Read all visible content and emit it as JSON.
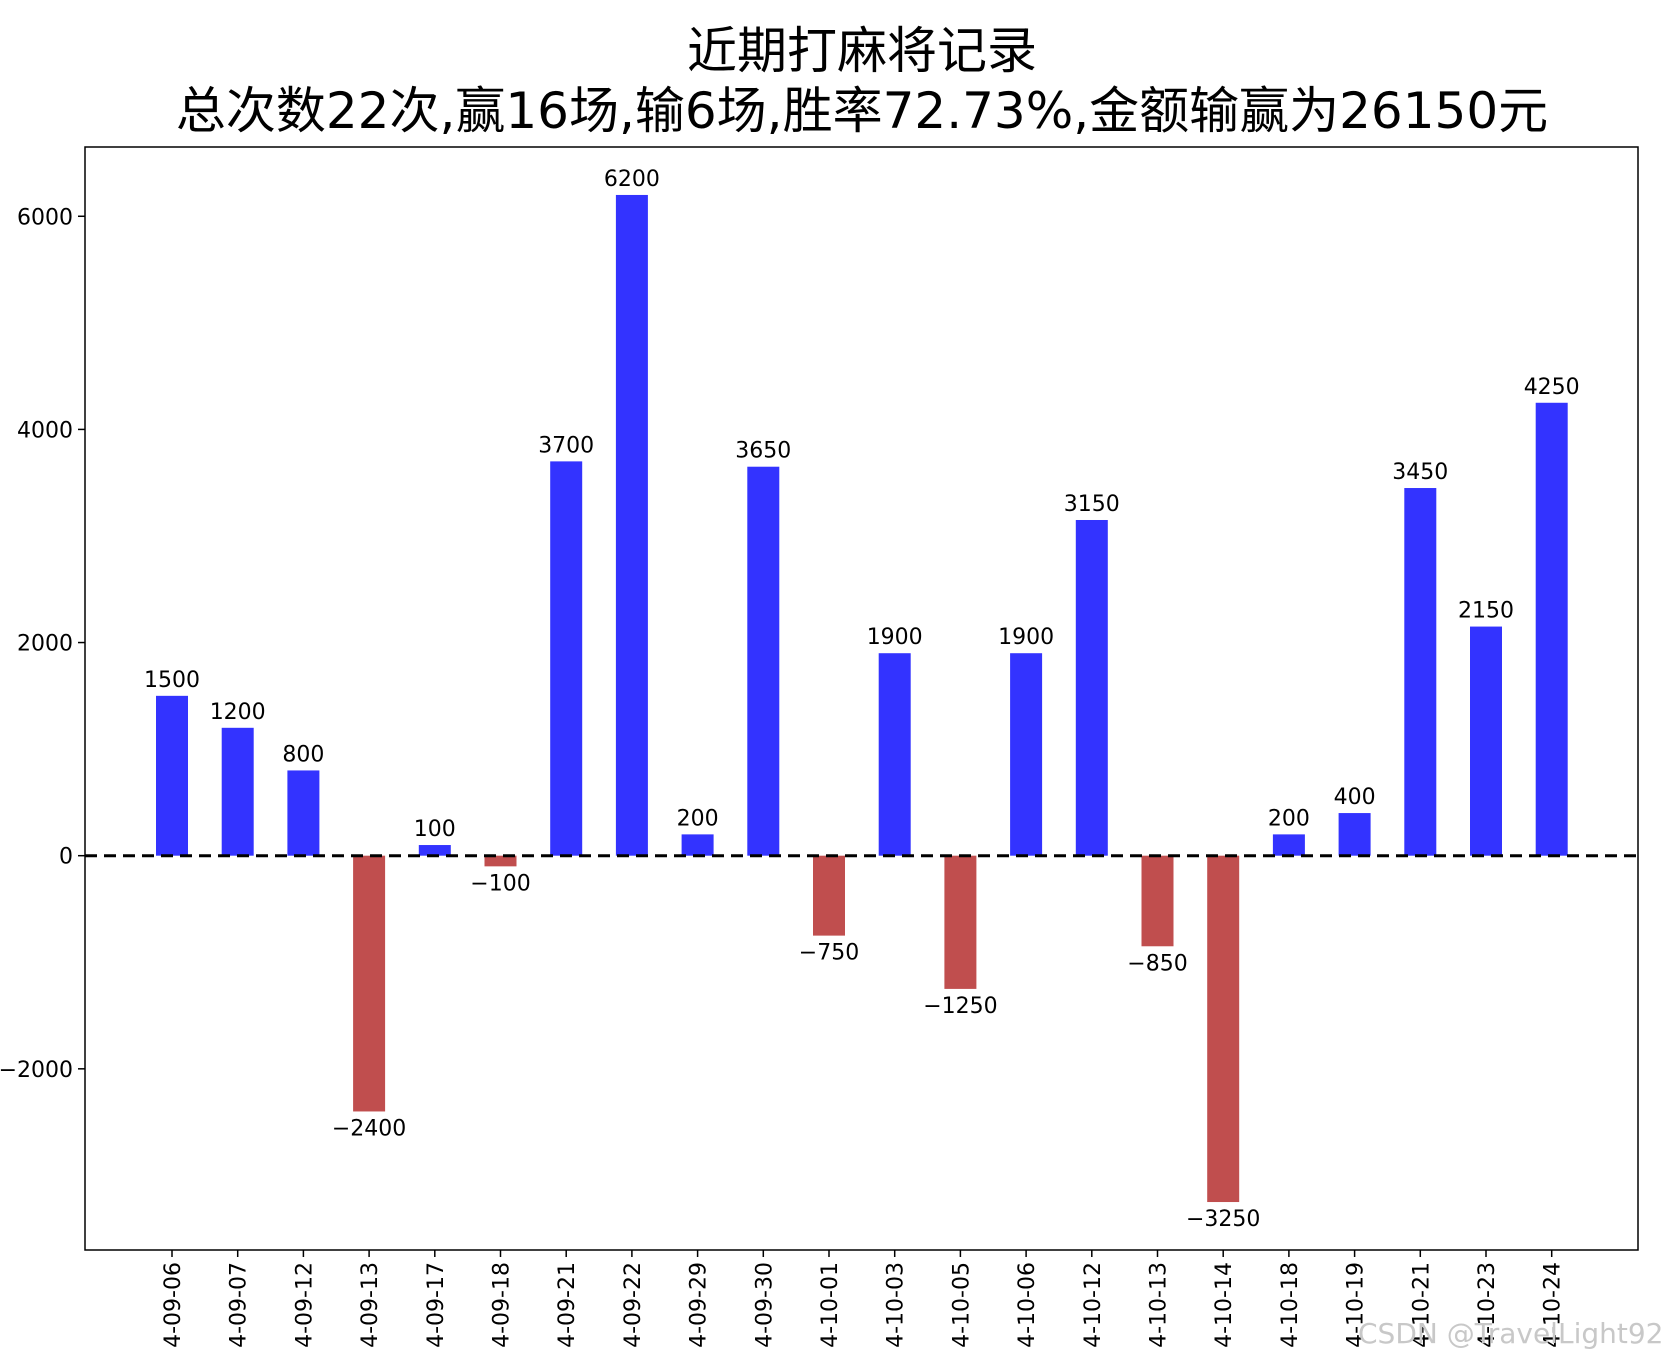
{
  "chart_data": {
    "type": "bar",
    "title": "近期打麻将记录",
    "subtitle": "总次数22次,赢16场,输6场,胜率72.73%,金额输赢为26150元",
    "categories": [
      "4-09-06",
      "4-09-07",
      "4-09-12",
      "4-09-13",
      "4-09-17",
      "4-09-18",
      "4-09-21",
      "4-09-22",
      "4-09-29",
      "4-09-30",
      "4-10-01",
      "4-10-03",
      "4-10-05",
      "4-10-06",
      "4-10-12",
      "4-10-13",
      "4-10-14",
      "4-10-18",
      "4-10-19",
      "4-10-21",
      "4-10-23",
      "4-10-24"
    ],
    "values": [
      1500,
      1200,
      800,
      -2400,
      100,
      -100,
      3700,
      6200,
      200,
      3650,
      -750,
      1900,
      -1250,
      1900,
      3150,
      -850,
      -3250,
      200,
      400,
      3450,
      2150,
      4250
    ],
    "value_labels": [
      "1500",
      "1200",
      "800",
      "−2400",
      "100",
      "−100",
      "3700",
      "6200",
      "200",
      "3650",
      "−750",
      "1900",
      "−1250",
      "1900",
      "3150",
      "−850",
      "−3250",
      "200",
      "400",
      "3450",
      "2150",
      "4250"
    ],
    "ylim": [
      -3700,
      6650
    ],
    "yticks": [
      -2000,
      0,
      2000,
      4000,
      6000
    ],
    "ytick_labels": [
      "−2000",
      "0",
      "2000",
      "4000",
      "6000"
    ],
    "colors": {
      "positive": "#3333ff",
      "negative": "#c04e4e",
      "zero_line": "#000000"
    },
    "grid": false,
    "zero_line": "dashed"
  },
  "watermark": "CSDN @TravelLight92"
}
